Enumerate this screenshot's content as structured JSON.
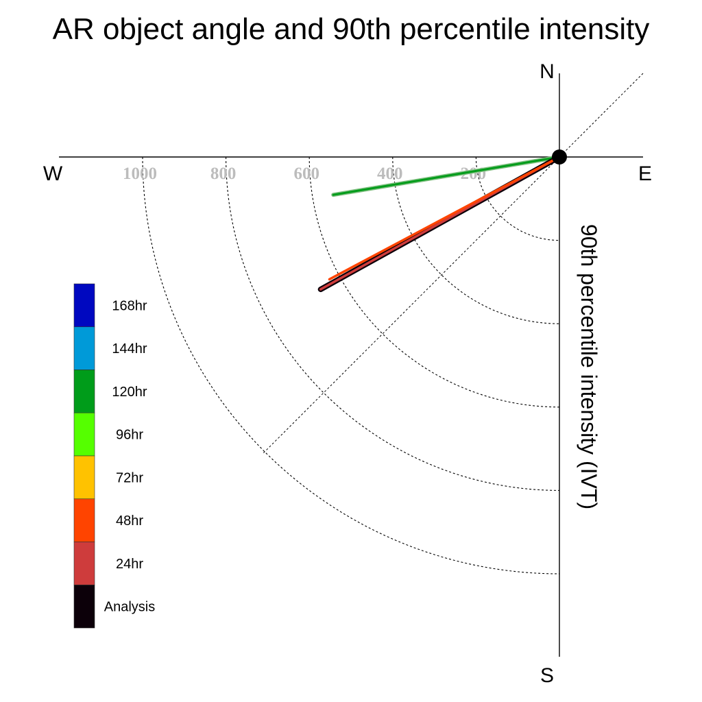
{
  "chart_data": {
    "type": "polar-vector",
    "title": "AR object angle and 90th percentile intensity",
    "axis_title": "90th percentile intensity (IVT)",
    "compass": {
      "n": "N",
      "s": "S",
      "e": "E",
      "w": "W"
    },
    "radial_ticks": [
      200,
      400,
      600,
      800,
      1000
    ],
    "radial_tick_labels": [
      "200",
      "400",
      "600",
      "800",
      "1000"
    ],
    "radial_max": 1200,
    "legend": {
      "position": "left",
      "items": [
        {
          "label": "168hr",
          "color": "#0008c0"
        },
        {
          "label": "144hr",
          "color": "#009ad8"
        },
        {
          "label": "120hr",
          "color": "#009c1a"
        },
        {
          "label": "96hr",
          "color": "#55ff00"
        },
        {
          "label": "72hr",
          "color": "#ffc200"
        },
        {
          "label": "48hr",
          "color": "#ff4400"
        },
        {
          "label": "24hr",
          "color": "#ce3c3c"
        },
        {
          "label": "Analysis",
          "color": "#0c0009"
        }
      ]
    },
    "vectors": [
      {
        "name": "120hr",
        "bearing_deg": 260.5,
        "intensity": 550,
        "color": "#009c1a"
      },
      {
        "name": "Analysis",
        "bearing_deg": 241,
        "intensity": 655,
        "color": "#0c0009"
      },
      {
        "name": "24hr",
        "bearing_deg": 241,
        "intensity": 655,
        "color": "#ce3c3c"
      },
      {
        "name": "48hr",
        "bearing_deg": 242,
        "intensity": 625,
        "color": "#ff4400"
      }
    ]
  }
}
